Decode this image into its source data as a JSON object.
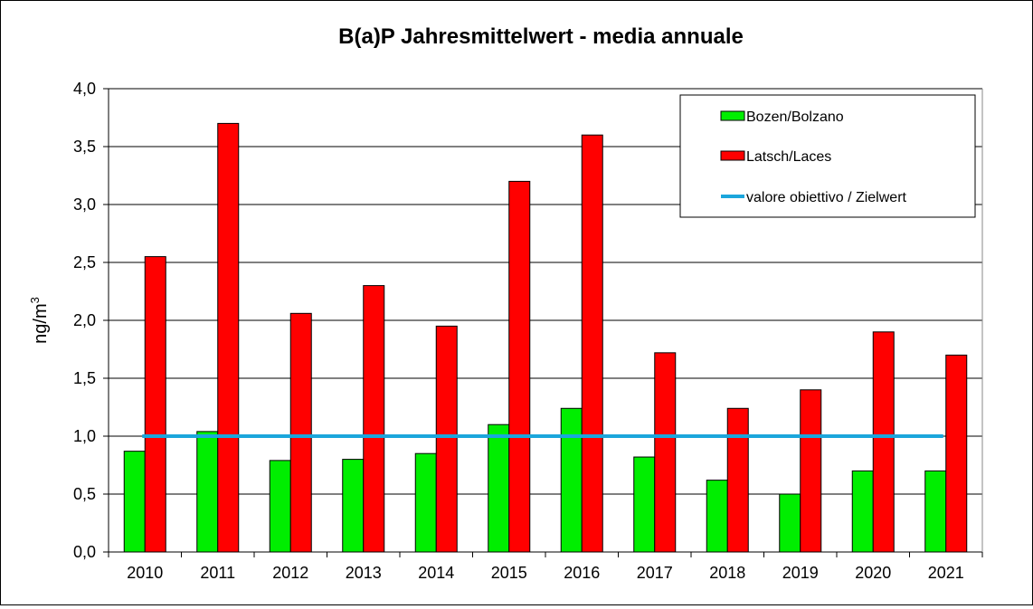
{
  "chart_data": {
    "type": "bar",
    "title": "B(a)P Jahresmittelwert - media annuale",
    "xlabel": "",
    "ylabel": "ng/m",
    "ylabel_superscript": "3",
    "ylim": [
      0,
      4.0
    ],
    "yticks": [
      "0,0",
      "0,5",
      "1,0",
      "1,5",
      "2,0",
      "2,5",
      "3,0",
      "3,5",
      "4,0"
    ],
    "ytick_values": [
      0,
      0.5,
      1.0,
      1.5,
      2.0,
      2.5,
      3.0,
      3.5,
      4.0
    ],
    "grid": true,
    "categories": [
      "2010",
      "2011",
      "2012",
      "2013",
      "2014",
      "2015",
      "2016",
      "2017",
      "2018",
      "2019",
      "2020",
      "2021"
    ],
    "series": [
      {
        "name": "Bozen/Bolzano",
        "color": "#00ee00",
        "values": [
          0.87,
          1.04,
          0.79,
          0.8,
          0.85,
          1.1,
          1.24,
          0.82,
          0.62,
          0.5,
          0.7,
          0.7
        ]
      },
      {
        "name": "Latsch/Laces",
        "color": "#ff0000",
        "values": [
          2.55,
          3.7,
          2.06,
          2.3,
          1.95,
          3.2,
          3.6,
          1.72,
          1.24,
          1.4,
          1.9,
          1.7
        ]
      }
    ],
    "reference_line": {
      "name": "valore obiettivo / Zielwert",
      "value": 1.0,
      "color": "#1ba6dc"
    },
    "legend_position": "top-right"
  }
}
